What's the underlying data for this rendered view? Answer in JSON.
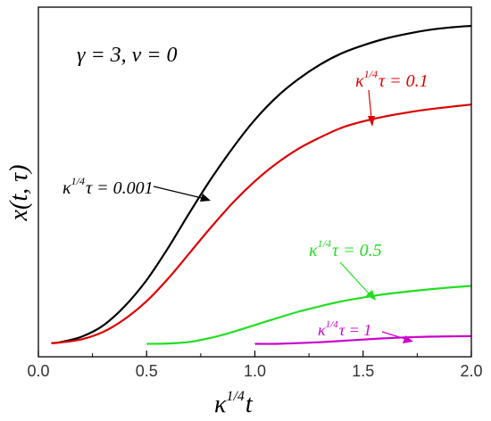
{
  "chart_data": {
    "type": "line",
    "xlim": [
      0.0,
      2.0
    ],
    "ylim": [
      0.0,
      1.0
    ],
    "xticks": [
      "0.0",
      "0.5",
      "1.0",
      "1.5",
      "2.0"
    ],
    "yticks_labeled": false,
    "grid": false,
    "legend": "none",
    "xlabel": {
      "base": "κ",
      "sup": "1/4",
      "tail": "t"
    },
    "ylabel": "x(t, τ)",
    "params_label": "γ = 3,  ν = 0",
    "series": [
      {
        "color": "#000000",
        "label": {
          "base": "κ",
          "sup": "1/4",
          "tail": "τ = 0.001"
        },
        "x": [
          0.06,
          0.1,
          0.2,
          0.3,
          0.4,
          0.5,
          0.6,
          0.7,
          0.8,
          0.9,
          1.0,
          1.1,
          1.2,
          1.3,
          1.4,
          1.5,
          1.6,
          1.7,
          1.8,
          1.9,
          2.0
        ],
        "y": [
          0.02,
          0.023,
          0.04,
          0.075,
          0.135,
          0.215,
          0.315,
          0.425,
          0.53,
          0.625,
          0.71,
          0.78,
          0.835,
          0.88,
          0.915,
          0.94,
          0.96,
          0.975,
          0.987,
          0.995,
          1.0
        ]
      },
      {
        "color": "#dd0000",
        "label": {
          "base": "κ",
          "sup": "1/4",
          "tail": "τ = 0.1"
        },
        "x": [
          0.06,
          0.1,
          0.2,
          0.3,
          0.4,
          0.5,
          0.6,
          0.7,
          0.8,
          0.9,
          1.0,
          1.1,
          1.2,
          1.3,
          1.4,
          1.5,
          1.6,
          1.7,
          1.8,
          1.9,
          2.0
        ],
        "y": [
          0.02,
          0.022,
          0.032,
          0.055,
          0.095,
          0.15,
          0.22,
          0.3,
          0.38,
          0.455,
          0.52,
          0.575,
          0.62,
          0.655,
          0.685,
          0.705,
          0.72,
          0.732,
          0.742,
          0.75,
          0.757
        ]
      },
      {
        "color": "#22dd22",
        "label": {
          "base": "κ",
          "sup": "1/4",
          "tail": "τ = 0.5"
        },
        "x": [
          0.5,
          0.6,
          0.7,
          0.8,
          0.9,
          1.0,
          1.1,
          1.2,
          1.3,
          1.4,
          1.5,
          1.6,
          1.7,
          1.8,
          1.9,
          2.0
        ],
        "y": [
          0.018,
          0.019,
          0.024,
          0.037,
          0.055,
          0.076,
          0.097,
          0.117,
          0.134,
          0.149,
          0.161,
          0.171,
          0.179,
          0.186,
          0.192,
          0.197
        ]
      },
      {
        "color": "#cc00cc",
        "label": {
          "base": "κ",
          "sup": "1/4",
          "tail": "τ = 1"
        },
        "x": [
          1.0,
          1.1,
          1.2,
          1.3,
          1.4,
          1.5,
          1.6,
          1.7,
          1.8,
          1.9,
          2.0
        ],
        "y": [
          0.018,
          0.018,
          0.02,
          0.023,
          0.027,
          0.031,
          0.035,
          0.038,
          0.04,
          0.041,
          0.042
        ]
      }
    ]
  }
}
